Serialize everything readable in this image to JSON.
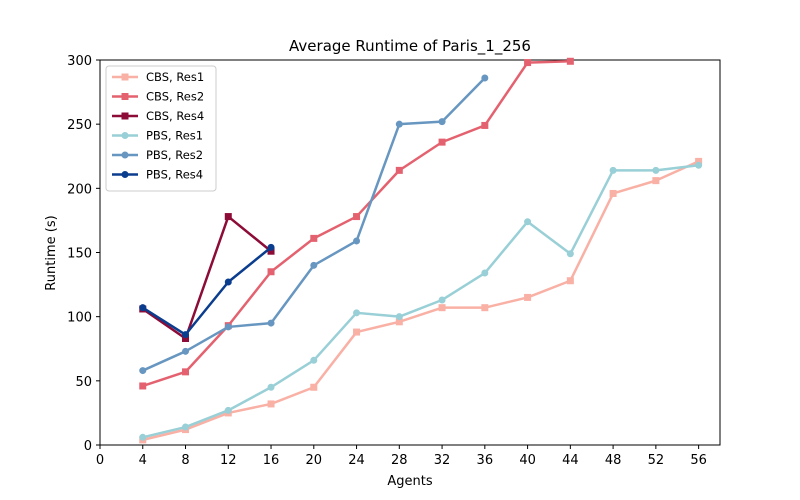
{
  "chart_data": {
    "type": "line",
    "title": "Average Runtime of Paris_1_256",
    "xlabel": "Agents",
    "ylabel": "Runtime (s)",
    "xlim": [
      0,
      58
    ],
    "ylim": [
      0,
      300
    ],
    "xticks": [
      0,
      4,
      8,
      12,
      16,
      20,
      24,
      28,
      32,
      36,
      40,
      44,
      48,
      52,
      56
    ],
    "yticks": [
      0,
      50,
      100,
      150,
      200,
      250,
      300
    ],
    "grid": false,
    "legend_position": "top-left",
    "series": [
      {
        "name": "CBS, Res1",
        "color": "#f9b0a5",
        "marker": "square",
        "x": [
          4,
          8,
          12,
          16,
          20,
          24,
          28,
          32,
          36,
          40,
          44,
          48,
          52,
          56
        ],
        "y": [
          4,
          12,
          25,
          32,
          45,
          88,
          96,
          107,
          107,
          115,
          128,
          196,
          206,
          221
        ]
      },
      {
        "name": "CBS, Res2",
        "color": "#e4626f",
        "marker": "square",
        "x": [
          4,
          8,
          12,
          16,
          20,
          24,
          28,
          32,
          36,
          40,
          44
        ],
        "y": [
          46,
          57,
          93,
          135,
          161,
          178,
          214,
          236,
          249,
          298,
          299
        ]
      },
      {
        "name": "CBS, Res4",
        "color": "#8c0b37",
        "marker": "square",
        "x": [
          4,
          8,
          12,
          16
        ],
        "y": [
          106,
          83,
          178,
          151
        ]
      },
      {
        "name": "PBS, Res1",
        "color": "#99cfd6",
        "marker": "circle",
        "x": [
          4,
          8,
          12,
          16,
          20,
          24,
          28,
          32,
          36,
          40,
          44,
          48,
          52,
          56
        ],
        "y": [
          6,
          14,
          27,
          45,
          66,
          103,
          100,
          113,
          134,
          174,
          149,
          214,
          214,
          218
        ]
      },
      {
        "name": "PBS, Res2",
        "color": "#6796c0",
        "marker": "circle",
        "x": [
          4,
          8,
          12,
          16,
          20,
          24,
          28,
          32,
          36
        ],
        "y": [
          58,
          73,
          92,
          95,
          140,
          159,
          250,
          252,
          286
        ]
      },
      {
        "name": "PBS, Res4",
        "color": "#0b3d8e",
        "marker": "circle",
        "x": [
          4,
          8,
          12,
          16
        ],
        "y": [
          107,
          86,
          127,
          154
        ]
      }
    ]
  }
}
